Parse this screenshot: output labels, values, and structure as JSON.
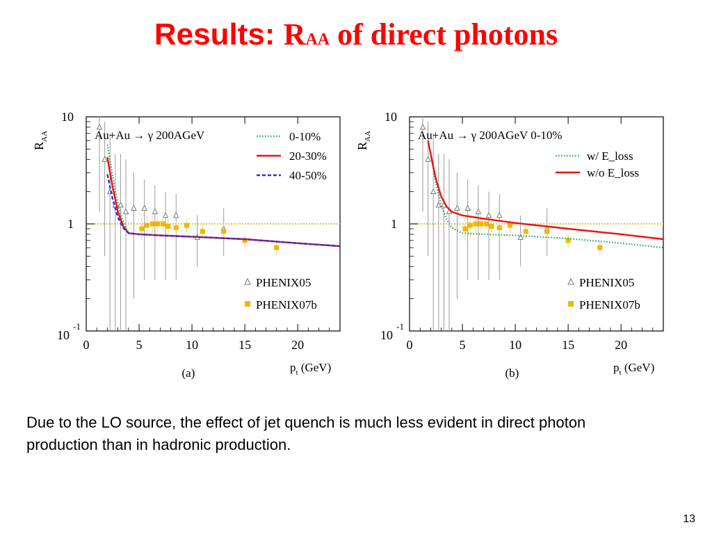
{
  "slide": {
    "title_prefix": "Results: ",
    "title_r": "R",
    "title_sub": "AA",
    "title_suffix": " of direct photons",
    "body": "Due to the LO source, the effect of jet quench is much less evident in direct photon production than in hadronic production.",
    "page_number": "13"
  },
  "chart_data": [
    {
      "panel": "(a)",
      "type": "line",
      "ylabel": "R_AA",
      "xlabel": "p_t (GeV)",
      "xlim": [
        0,
        24
      ],
      "ylim": [
        0.1,
        10
      ],
      "yscale": "log",
      "xticks": [
        "0",
        "5",
        "10",
        "15",
        "20"
      ],
      "yticks": [
        "10",
        "1",
        "10^-1"
      ],
      "reaction": "Au+Au → γ 200AGeV",
      "legend_lines": [
        {
          "label": "0-10%",
          "style": "dotted",
          "color": "#22aa66"
        },
        {
          "label": "20-30%",
          "style": "solid",
          "color": "#ee1111"
        },
        {
          "label": "40-50%",
          "style": "dashed",
          "color": "#2233dd"
        }
      ],
      "legend_points": [
        {
          "label": "PHENIX05",
          "marker": "triangle",
          "color": "#888888"
        },
        {
          "label": "PHENIX07b",
          "marker": "square",
          "color": "#f0b800"
        }
      ],
      "reference_line": 1.0,
      "series": [
        {
          "name": "0-10%",
          "style": "dotted",
          "color": "#22aa66",
          "x": [
            2.0,
            2.5,
            3.0,
            3.5,
            4.0,
            5.0,
            7.0,
            10.0,
            15.0,
            20.0,
            24.0
          ],
          "y": [
            5.5,
            2.8,
            1.5,
            1.05,
            0.82,
            0.8,
            0.78,
            0.76,
            0.72,
            0.66,
            0.62
          ]
        },
        {
          "name": "20-30%",
          "style": "solid",
          "color": "#ee1111",
          "x": [
            2.0,
            2.5,
            3.0,
            3.5,
            4.0,
            5.0,
            7.0,
            10.0,
            15.0,
            20.0,
            24.0
          ],
          "y": [
            4.2,
            2.2,
            1.3,
            0.95,
            0.82,
            0.8,
            0.78,
            0.76,
            0.72,
            0.66,
            0.62
          ]
        },
        {
          "name": "40-50%",
          "style": "dashed",
          "color": "#2233dd",
          "x": [
            2.0,
            2.5,
            3.0,
            3.5,
            4.0,
            5.0,
            7.0,
            10.0,
            15.0,
            20.0,
            24.0
          ],
          "y": [
            2.9,
            1.7,
            1.15,
            0.92,
            0.82,
            0.8,
            0.78,
            0.76,
            0.72,
            0.66,
            0.62
          ]
        }
      ],
      "points": [
        {
          "set": "PHENIX05",
          "x": [
            1.25,
            1.75,
            2.25,
            2.75,
            3.25,
            3.75,
            4.5,
            5.5,
            6.5,
            7.5,
            8.5,
            10.5,
            13.0
          ],
          "y": [
            8.0,
            4.0,
            2.0,
            1.5,
            1.5,
            1.3,
            1.4,
            1.4,
            1.3,
            1.2,
            1.2,
            0.75,
            0.9
          ],
          "err_lo": [
            1.3,
            0.5,
            0.08,
            0.09,
            0.09,
            0.09,
            0.2,
            0.3,
            0.3,
            0.3,
            0.3,
            0.4,
            0.5
          ],
          "err_hi": [
            10,
            9,
            7,
            4.5,
            4.5,
            4,
            3,
            2.6,
            2.3,
            2.0,
            1.9,
            1.2,
            1.4
          ]
        },
        {
          "set": "PHENIX07b",
          "x": [
            5.25,
            5.75,
            6.25,
            6.75,
            7.25,
            7.75,
            8.5,
            9.5,
            11.0,
            13.0,
            15.0,
            18.0
          ],
          "y": [
            0.9,
            0.97,
            1.0,
            1.0,
            1.0,
            0.95,
            0.92,
            0.97,
            0.85,
            0.85,
            0.7,
            0.6
          ],
          "err_lo": [
            0.7,
            0.75,
            0.82,
            0.85,
            0.86,
            0.82,
            0.8,
            0.84,
            0.72,
            0.7,
            0.6,
            0.52
          ],
          "err_hi": [
            1.15,
            1.2,
            1.2,
            1.18,
            1.16,
            1.12,
            1.08,
            1.12,
            1.0,
            1.02,
            0.82,
            0.7
          ]
        }
      ]
    },
    {
      "panel": "(b)",
      "type": "line",
      "ylabel": "R_AA",
      "xlabel": "p_t (GeV)",
      "xlim": [
        0,
        24
      ],
      "ylim": [
        0.1,
        10
      ],
      "yscale": "log",
      "xticks": [
        "0",
        "5",
        "10",
        "15",
        "20"
      ],
      "yticks": [
        "10",
        "1",
        "10^-1"
      ],
      "reaction": "Au+Au → γ 200AGeV  0-10%",
      "legend_lines": [
        {
          "label": "w/ E_loss",
          "style": "dotted",
          "color": "#22aa66"
        },
        {
          "label": "w/o E_loss",
          "style": "solid",
          "color": "#ee1111"
        }
      ],
      "legend_points": [
        {
          "label": "PHENIX05",
          "marker": "triangle",
          "color": "#888888"
        },
        {
          "label": "PHENIX07b",
          "marker": "square",
          "color": "#f0b800"
        }
      ],
      "reference_line": 1.0,
      "series": [
        {
          "name": "w/ E_loss",
          "style": "dotted",
          "color": "#22aa66",
          "x": [
            2.0,
            2.5,
            3.0,
            3.5,
            4.0,
            5.0,
            7.0,
            10.0,
            15.0,
            20.0,
            24.0
          ],
          "y": [
            4.5,
            2.4,
            1.5,
            1.1,
            0.92,
            0.82,
            0.8,
            0.78,
            0.73,
            0.66,
            0.6
          ]
        },
        {
          "name": "w/o E_loss",
          "style": "solid",
          "color": "#ee1111",
          "x": [
            1.75,
            2.0,
            2.5,
            3.0,
            3.5,
            4.0,
            5.0,
            7.0,
            10.0,
            15.0,
            20.0,
            24.0
          ],
          "y": [
            6.0,
            4.5,
            2.6,
            1.8,
            1.45,
            1.3,
            1.2,
            1.12,
            1.02,
            0.9,
            0.8,
            0.72
          ]
        }
      ],
      "points": [
        {
          "set": "PHENIX05",
          "x": [
            1.25,
            1.75,
            2.25,
            2.75,
            3.25,
            3.75,
            4.5,
            5.5,
            6.5,
            7.5,
            8.5,
            10.5,
            13.0
          ],
          "y": [
            8.0,
            4.0,
            2.0,
            1.5,
            1.5,
            1.3,
            1.4,
            1.4,
            1.3,
            1.2,
            1.2,
            0.75,
            0.9
          ],
          "err_lo": [
            1.3,
            0.5,
            0.08,
            0.09,
            0.09,
            0.09,
            0.2,
            0.3,
            0.3,
            0.3,
            0.3,
            0.4,
            0.5
          ],
          "err_hi": [
            10,
            9,
            7,
            4.5,
            4.5,
            4,
            3,
            2.6,
            2.3,
            2.0,
            1.9,
            1.2,
            1.4
          ]
        },
        {
          "set": "PHENIX07b",
          "x": [
            5.25,
            5.75,
            6.25,
            6.75,
            7.25,
            7.75,
            8.5,
            9.5,
            11.0,
            13.0,
            15.0,
            18.0
          ],
          "y": [
            0.9,
            0.97,
            1.0,
            1.0,
            1.0,
            0.95,
            0.92,
            0.97,
            0.85,
            0.85,
            0.7,
            0.6
          ],
          "err_lo": [
            0.7,
            0.75,
            0.82,
            0.85,
            0.86,
            0.82,
            0.8,
            0.84,
            0.72,
            0.7,
            0.6,
            0.52
          ],
          "err_hi": [
            1.15,
            1.2,
            1.2,
            1.18,
            1.16,
            1.12,
            1.08,
            1.12,
            1.0,
            1.02,
            0.82,
            0.7
          ]
        }
      ]
    }
  ]
}
